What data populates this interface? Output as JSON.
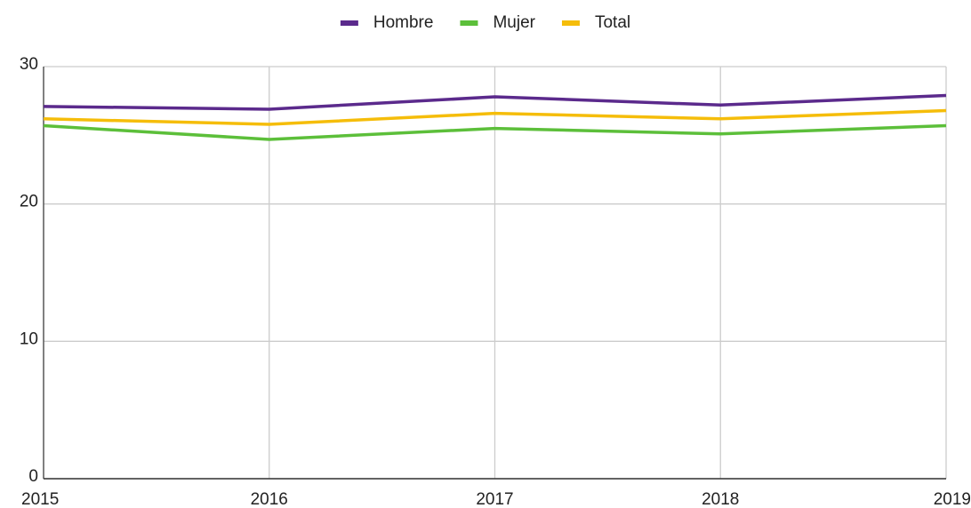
{
  "chart_data": {
    "type": "line",
    "x": [
      2015,
      2016,
      2017,
      2018,
      2019
    ],
    "xlim": [
      2015,
      2019
    ],
    "xticks": [
      2015,
      2016,
      2017,
      2018,
      2019
    ],
    "ylim": [
      0,
      30
    ],
    "yticks": [
      0,
      10,
      20,
      30
    ],
    "grid": true,
    "legend": "top",
    "series": [
      {
        "name": "Hombre",
        "color": "#5b2a8c",
        "values": [
          27.1,
          26.9,
          27.8,
          27.2,
          27.9
        ]
      },
      {
        "name": "Mujer",
        "color": "#5cbf3a",
        "values": [
          25.7,
          24.7,
          25.5,
          25.1,
          25.7
        ]
      },
      {
        "name": "Total",
        "color": "#f5bd0a",
        "values": [
          26.2,
          25.8,
          26.6,
          26.2,
          26.8
        ]
      }
    ]
  }
}
